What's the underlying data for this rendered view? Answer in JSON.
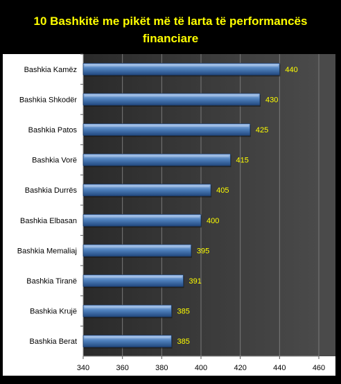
{
  "chart_data": {
    "type": "bar",
    "orientation": "horizontal",
    "title": "10 Bashkitë me pikët më të larta të performancës financiare",
    "categories": [
      "Bashkia Kamëz",
      "Bashkia Shkodër",
      "Bashkia Patos",
      "Bashkia Vorë",
      "Bashkia Durrës",
      "Bashkia Elbasan",
      "Bashkia Memaliaj",
      "Bashkia Tiranë",
      "Bashkia Krujë",
      "Bashkia Berat"
    ],
    "values": [
      440,
      430,
      425,
      415,
      405,
      400,
      395,
      391,
      385,
      385
    ],
    "xlim": [
      340,
      460
    ],
    "xticks": [
      340,
      360,
      380,
      400,
      420,
      440,
      460
    ],
    "xlabel": "",
    "ylabel": "",
    "grid": "vertical",
    "legend": "none",
    "colors": {
      "page_background": "#000000",
      "plot_background": "#3a3a3a",
      "grid": "#7a7a7a",
      "bar_light": "#9fc0ee",
      "bar_mid": "#4f81bd",
      "bar_dark": "#22487e",
      "title": "#ffff00",
      "data_label": "#ffff00",
      "tick_label": "#000000"
    }
  }
}
